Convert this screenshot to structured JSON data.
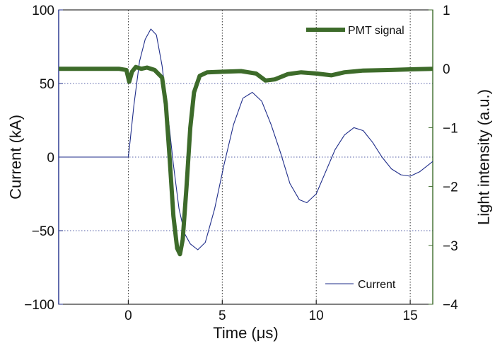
{
  "chart_data": {
    "type": "line",
    "x_axis": {
      "label": "Time (μs)",
      "range": [
        -3.7,
        16.2
      ],
      "ticks": [
        0,
        5,
        10,
        15
      ],
      "tick_labels": [
        "0",
        "5",
        "10",
        "15"
      ]
    },
    "y_left": {
      "label": "Current (kA)",
      "range": [
        -100,
        100
      ],
      "ticks": [
        -100,
        -50,
        0,
        50,
        100
      ],
      "tick_labels": [
        "−100",
        "−50",
        "0",
        "50",
        "100"
      ],
      "color": "#1f2d8a"
    },
    "y_right": {
      "label": "Light intensity (a.u.)",
      "range": [
        -4,
        1
      ],
      "ticks": [
        -4,
        -3,
        -2,
        -1,
        0,
        1
      ],
      "tick_labels": [
        "−4",
        "−3",
        "−2",
        "−1",
        "0",
        "1"
      ],
      "color": "#3d6b2a"
    },
    "grid": "dotted at x ticks and left-axis ticks",
    "series": [
      {
        "name": "PMT signal",
        "axis": "right",
        "color": "#3d6b2a",
        "legend_position": "top-right",
        "points": [
          [
            -3.7,
            0.0
          ],
          [
            -0.5,
            0.0
          ],
          [
            -0.1,
            -0.02
          ],
          [
            0.05,
            -0.22
          ],
          [
            0.2,
            -0.05
          ],
          [
            0.4,
            0.03
          ],
          [
            0.7,
            0.0
          ],
          [
            1.0,
            0.02
          ],
          [
            1.4,
            -0.02
          ],
          [
            1.8,
            -0.15
          ],
          [
            2.0,
            -0.6
          ],
          [
            2.2,
            -1.5
          ],
          [
            2.4,
            -2.5
          ],
          [
            2.6,
            -3.05
          ],
          [
            2.75,
            -3.15
          ],
          [
            2.9,
            -2.9
          ],
          [
            3.1,
            -2.0
          ],
          [
            3.3,
            -1.0
          ],
          [
            3.5,
            -0.4
          ],
          [
            3.8,
            -0.12
          ],
          [
            4.2,
            -0.06
          ],
          [
            5.0,
            -0.05
          ],
          [
            6.0,
            -0.04
          ],
          [
            6.8,
            -0.08
          ],
          [
            7.3,
            -0.2
          ],
          [
            7.8,
            -0.18
          ],
          [
            8.5,
            -0.09
          ],
          [
            9.2,
            -0.06
          ],
          [
            10.0,
            -0.08
          ],
          [
            10.8,
            -0.11
          ],
          [
            11.5,
            -0.06
          ],
          [
            12.5,
            -0.03
          ],
          [
            14.0,
            -0.02
          ],
          [
            15.0,
            -0.01
          ],
          [
            16.2,
            0.0
          ]
        ]
      },
      {
        "name": "Current",
        "axis": "left",
        "color": "#1f2d8a",
        "legend_position": "bottom-right",
        "points": [
          [
            -3.7,
            0.0
          ],
          [
            0.0,
            0.0
          ],
          [
            0.05,
            5.0
          ],
          [
            0.3,
            35.0
          ],
          [
            0.6,
            65.0
          ],
          [
            0.9,
            80.0
          ],
          [
            1.2,
            87.0
          ],
          [
            1.5,
            83.0
          ],
          [
            1.8,
            62.0
          ],
          [
            2.1,
            30.0
          ],
          [
            2.4,
            -5.0
          ],
          [
            2.7,
            -35.0
          ],
          [
            3.0,
            -52.0
          ],
          [
            3.3,
            -59.0
          ],
          [
            3.7,
            -63.0
          ],
          [
            4.1,
            -58.0
          ],
          [
            4.6,
            -35.0
          ],
          [
            5.1,
            -5.0
          ],
          [
            5.6,
            22.0
          ],
          [
            6.1,
            40.0
          ],
          [
            6.6,
            44.0
          ],
          [
            7.1,
            38.0
          ],
          [
            7.6,
            22.0
          ],
          [
            8.1,
            3.0
          ],
          [
            8.6,
            -18.0
          ],
          [
            9.1,
            -29.0
          ],
          [
            9.5,
            -31.0
          ],
          [
            10.0,
            -25.0
          ],
          [
            10.5,
            -10.0
          ],
          [
            11.0,
            5.0
          ],
          [
            11.5,
            15.0
          ],
          [
            12.0,
            20.0
          ],
          [
            12.5,
            18.0
          ],
          [
            13.0,
            10.0
          ],
          [
            13.5,
            0.0
          ],
          [
            14.0,
            -8.0
          ],
          [
            14.5,
            -12.0
          ],
          [
            15.0,
            -13.0
          ],
          [
            15.5,
            -10.0
          ],
          [
            16.2,
            -3.0
          ]
        ]
      }
    ]
  }
}
